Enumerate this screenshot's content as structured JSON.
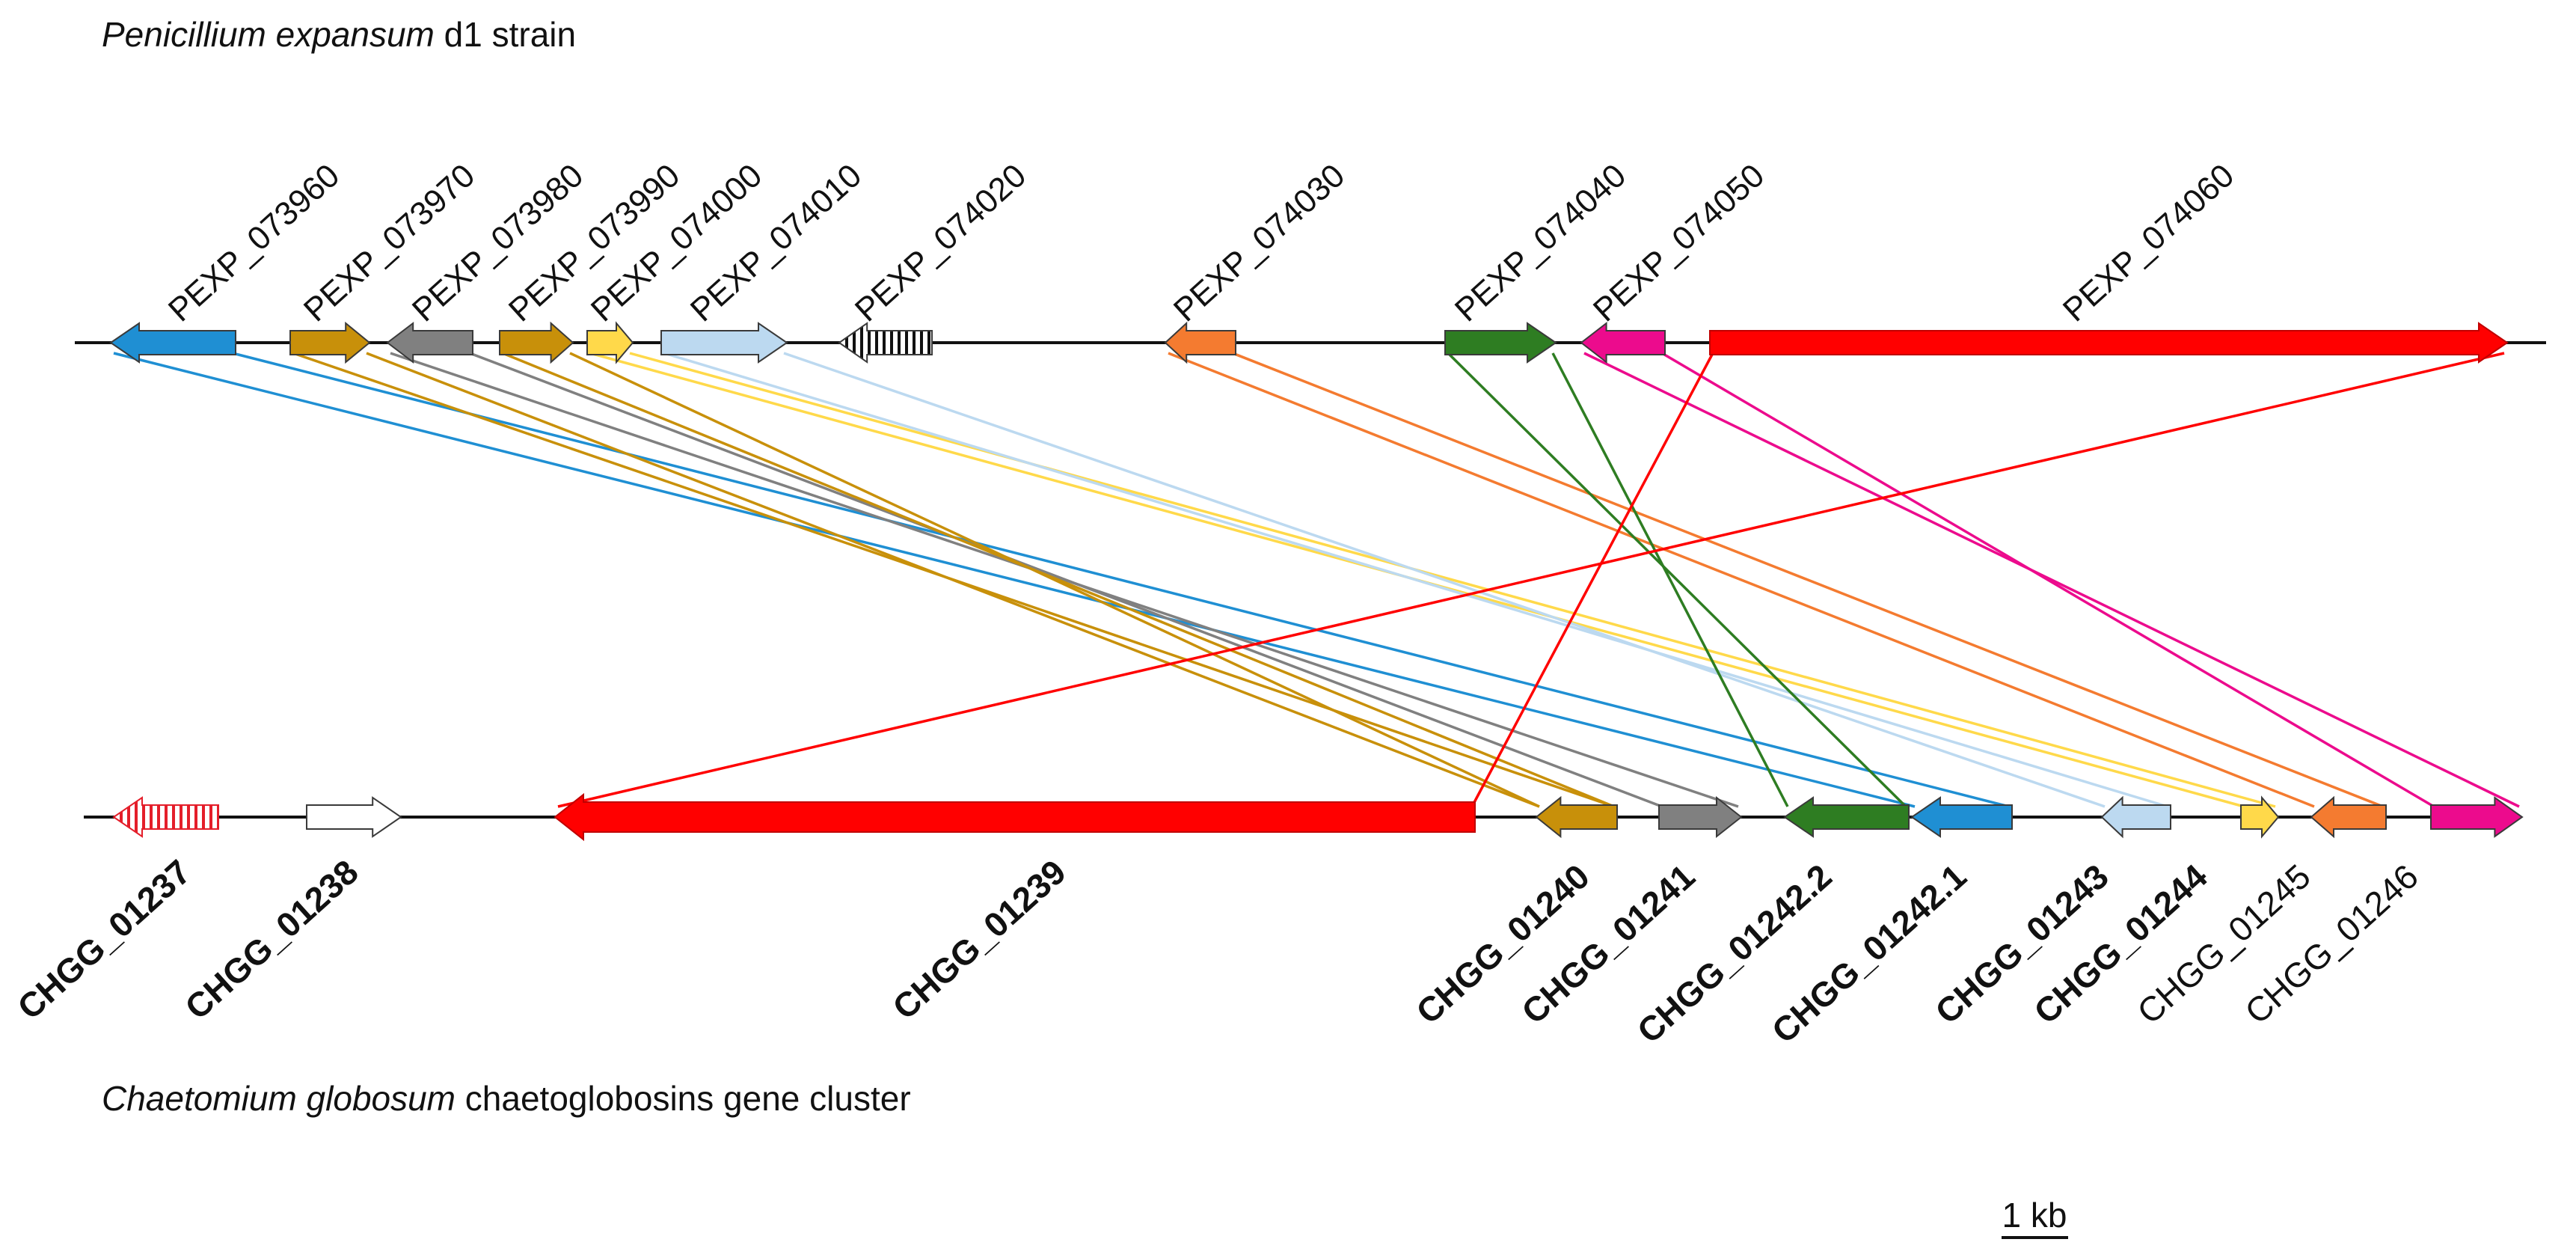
{
  "top_strain": {
    "species": "Penicillium expansum",
    "strain_suffix": " d1 strain"
  },
  "bottom_strain": {
    "species": "Chaetomium globosum",
    "cluster_suffix": " chaetoglobosins gene cluster"
  },
  "scale_bar": {
    "label": "1 kb"
  },
  "colors": {
    "blue": "#1f8fd3",
    "gold": "#c8900a",
    "gray": "#808080",
    "lightyellow": "#ffd94a",
    "lightblue": "#bcd9f0",
    "orange": "#f47b30",
    "green": "#2e7d22",
    "pink": "#ec0b8d",
    "red": "#ff0000",
    "white": "#ffffff"
  },
  "top_genes": [
    {
      "id": "PEXP_073960",
      "color": "blue",
      "pattern": "solid"
    },
    {
      "id": "PEXP_073970",
      "color": "gold",
      "pattern": "solid"
    },
    {
      "id": "PEXP_073980",
      "color": "gray",
      "pattern": "solid"
    },
    {
      "id": "PEXP_073990",
      "color": "gold",
      "pattern": "solid"
    },
    {
      "id": "PEXP_074000",
      "color": "lightyellow",
      "pattern": "solid"
    },
    {
      "id": "PEXP_074010",
      "color": "lightblue",
      "pattern": "solid"
    },
    {
      "id": "PEXP_074020",
      "color": "white",
      "pattern": "vertical-stripes-black"
    },
    {
      "id": "PEXP_074030",
      "color": "orange",
      "pattern": "solid"
    },
    {
      "id": "PEXP_074040",
      "color": "green",
      "pattern": "solid"
    },
    {
      "id": "PEXP_074050",
      "color": "pink",
      "pattern": "solid"
    },
    {
      "id": "PEXP_074060",
      "color": "red",
      "pattern": "solid"
    }
  ],
  "bottom_genes": [
    {
      "id": "CHGG_01237",
      "color": "white",
      "pattern": "vertical-stripes-red",
      "bold": true
    },
    {
      "id": "CHGG_01238",
      "color": "white",
      "pattern": "solid",
      "bold": true
    },
    {
      "id": "CHGG_01239",
      "color": "red",
      "pattern": "solid",
      "bold": true
    },
    {
      "id": "CHGG_01240",
      "color": "gold",
      "pattern": "solid",
      "bold": true
    },
    {
      "id": "CHGG_01241",
      "color": "gray",
      "pattern": "solid",
      "bold": true
    },
    {
      "id": "CHGG_01242.2",
      "color": "green",
      "pattern": "solid",
      "bold": true
    },
    {
      "id": "CHGG_01242.1",
      "color": "blue",
      "pattern": "solid",
      "bold": true
    },
    {
      "id": "CHGG_01243",
      "color": "lightblue",
      "pattern": "solid",
      "bold": true
    },
    {
      "id": "CHGG_01244",
      "color": "lightyellow",
      "pattern": "solid",
      "bold": true
    },
    {
      "id": "CHGG_01245",
      "color": "orange",
      "pattern": "solid",
      "bold": false
    },
    {
      "id": "CHGG_01246",
      "color": "pink",
      "pattern": "solid",
      "bold": false
    }
  ],
  "homology_links": [
    {
      "top": "PEXP_073960",
      "bottom": "CHGG_01242.1",
      "color": "blue"
    },
    {
      "top": "PEXP_073970",
      "bottom": "CHGG_01240",
      "color": "gold"
    },
    {
      "top": "PEXP_073980",
      "bottom": "CHGG_01241",
      "color": "gray"
    },
    {
      "top": "PEXP_073990",
      "bottom": "CHGG_01240",
      "color": "gold"
    },
    {
      "top": "PEXP_074000",
      "bottom": "CHGG_01244",
      "color": "lightyellow"
    },
    {
      "top": "PEXP_074010",
      "bottom": "CHGG_01243",
      "color": "lightblue"
    },
    {
      "top": "PEXP_074030",
      "bottom": "CHGG_01245",
      "color": "orange"
    },
    {
      "top": "PEXP_074040",
      "bottom": "CHGG_01242.2",
      "color": "green"
    },
    {
      "top": "PEXP_074050",
      "bottom": "CHGG_01246",
      "color": "pink"
    },
    {
      "top": "PEXP_074060",
      "bottom": "CHGG_01239",
      "color": "red"
    }
  ]
}
